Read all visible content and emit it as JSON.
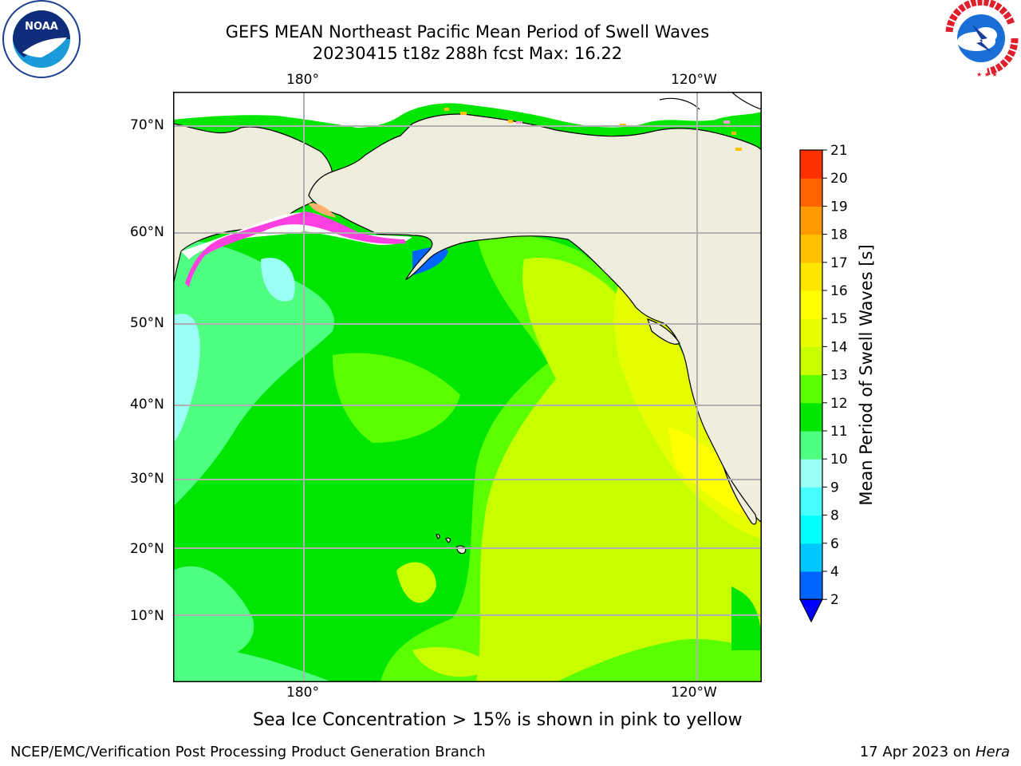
{
  "title": {
    "line1": "GEFS MEAN Northeast Pacific Mean Period of Swell Waves",
    "line2": "20230415 t18z 288h fcst   Max: 16.22"
  },
  "map": {
    "top_lon_labels": [
      "180°",
      "120°W"
    ],
    "bottom_lon_labels": [
      "180°",
      "120°W"
    ],
    "lat_labels": [
      "70°N",
      "60°N",
      "50°N",
      "40°N",
      "30°N",
      "20°N",
      "10°N"
    ],
    "land_color": "#efeedc",
    "ice_note": "Sea Ice Concentration > 15% is shown in pink to yellow"
  },
  "colorbar": {
    "label": "Mean Period of Swell Waves [s]",
    "ticks": [
      "2",
      "4",
      "6",
      "8",
      "9",
      "10",
      "11",
      "12",
      "13",
      "14",
      "15",
      "16",
      "17",
      "18",
      "19",
      "20",
      "21"
    ],
    "colors": [
      "#0064ff",
      "#00c8ff",
      "#00ffff",
      "#48ffff",
      "#9cfff5",
      "#4fff82",
      "#00e600",
      "#5aff00",
      "#c8ff00",
      "#e6ff00",
      "#ffff00",
      "#ffe600",
      "#ffc000",
      "#ff9b00",
      "#ff6400",
      "#ff3000",
      "#ff0000"
    ],
    "underflow_color": "#0000ff"
  },
  "footer": {
    "left": "NCEP/EMC/Verification Post Processing Product Generation Branch",
    "right_prefix": "17 Apr 2023 on ",
    "right_host": "Hera"
  },
  "logos": {
    "noaa_text": "NOAA",
    "nws_text": "NATIONAL WEATHER SERVICE"
  }
}
